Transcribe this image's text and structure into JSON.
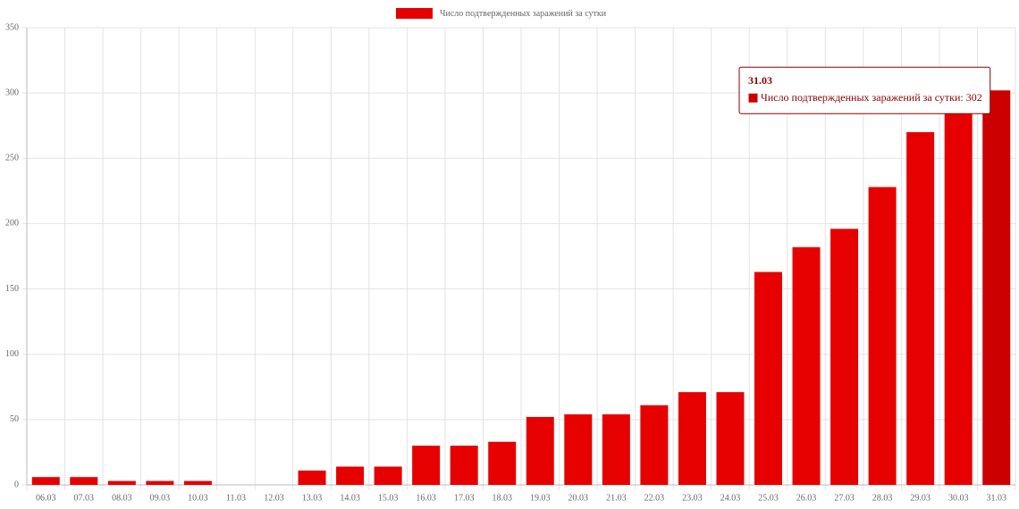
{
  "chart_data": {
    "type": "bar",
    "categories": [
      "06.03",
      "07.03",
      "08.03",
      "09.03",
      "10.03",
      "11.03",
      "12.03",
      "13.03",
      "14.03",
      "15.03",
      "16.03",
      "17.03",
      "18.03",
      "19.03",
      "20.03",
      "21.03",
      "22.03",
      "23.03",
      "24.03",
      "25.03",
      "26.03",
      "27.03",
      "28.03",
      "29.03",
      "30.03",
      "31.03"
    ],
    "series": [
      {
        "name": "Число подтвержденных заражений за сутки",
        "color": "#e60000",
        "values": [
          6,
          6,
          3,
          3,
          3,
          0,
          0,
          11,
          14,
          14,
          30,
          30,
          33,
          52,
          54,
          54,
          61,
          71,
          71,
          163,
          182,
          196,
          228,
          270,
          290,
          302
        ]
      }
    ],
    "ylim": [
      0,
      350
    ],
    "yticks": [
      0,
      50,
      100,
      150,
      200,
      250,
      300,
      350
    ],
    "grid": true,
    "highlight_color": "#cc0000",
    "tooltip": {
      "title": "31.03",
      "text": "Число подтвержденных заражений за сутки: 302"
    }
  }
}
